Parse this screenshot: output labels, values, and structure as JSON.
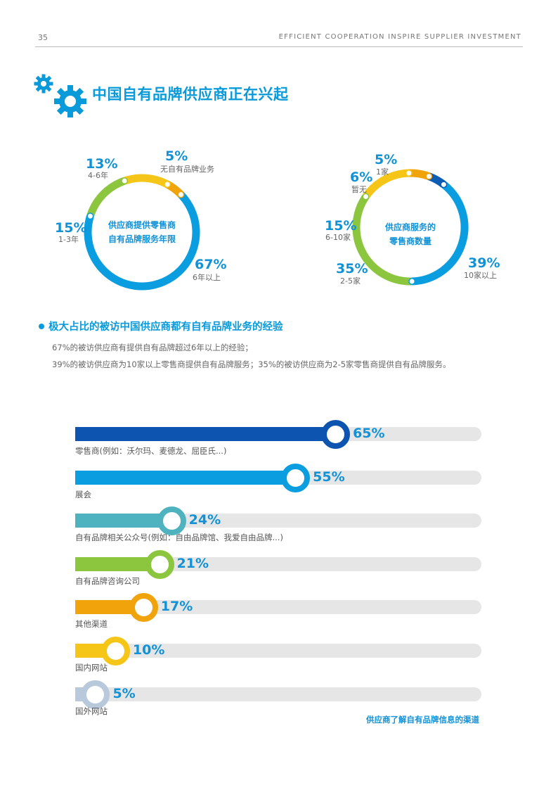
{
  "header": {
    "page_number": "35",
    "running_title": "EFFICIENT COOPERATION INSPIRE SUPPLIER INVESTMENT"
  },
  "icons": {
    "gear_small": "gear-icon",
    "gear_large": "gear-icon"
  },
  "title": "中国自有品牌供应商正在兴起",
  "donut_left": {
    "center_line1": "供应商提供零售商",
    "center_line2": "自有品牌服务年限",
    "segments": [
      {
        "value": 67,
        "pct": "67%",
        "label": "6年以上",
        "color": "#0a9ee0"
      },
      {
        "value": 15,
        "pct": "15%",
        "label": "1-3年",
        "color": "#8cc63f"
      },
      {
        "value": 13,
        "pct": "13%",
        "label": "4-6年",
        "color": "#f5c518"
      },
      {
        "value": 5,
        "pct": "5%",
        "label": "无自有品牌业务",
        "color": "#f0a30a"
      }
    ]
  },
  "donut_right": {
    "center_line1": "供应商服务的",
    "center_line2": "零售商数量",
    "segments": [
      {
        "value": 39,
        "pct": "39%",
        "label": "10家以上",
        "color": "#0a9ee0"
      },
      {
        "value": 35,
        "pct": "35%",
        "label": "2-5家",
        "color": "#8cc63f"
      },
      {
        "value": 15,
        "pct": "15%",
        "label": "6-10家",
        "color": "#f5c518"
      },
      {
        "value": 6,
        "pct": "6%",
        "label": "暂无",
        "color": "#f0a30a"
      },
      {
        "value": 5,
        "pct": "5%",
        "label": "1家",
        "color": "#0c5db3"
      }
    ]
  },
  "section": {
    "title": "极大占比的被访中国供应商都有自有品牌业务的经验",
    "line1": "67%的被访供应商有提供自有品牌超过6年以上的经验；",
    "line2": "39%的被访供应商为10家以上零售商提供自有品牌服务；35%的被访供应商为2-5家零售商提供自有品牌服务。"
  },
  "chart_data": {
    "type": "bar",
    "title": "供应商了解自有品牌信息的渠道",
    "categories": [
      "零售商(例如：沃尔玛、麦德龙、屈臣氏...)",
      "展会",
      "自有品牌相关公众号(例如：自由品牌馆、我爱自由品牌...)",
      "自有品牌咨询公司",
      "其他渠道",
      "国内网站",
      "国外网站"
    ],
    "values": [
      65,
      55,
      24,
      21,
      17,
      10,
      5
    ],
    "value_labels": [
      "65%",
      "55%",
      "24%",
      "21%",
      "17%",
      "10%",
      "5%"
    ],
    "colors": [
      "#0c54b0",
      "#0a9ee0",
      "#4fb3bf",
      "#8cc63f",
      "#f0a30a",
      "#f5c518",
      "#b8c9db"
    ],
    "ylim": [
      0,
      100
    ]
  }
}
